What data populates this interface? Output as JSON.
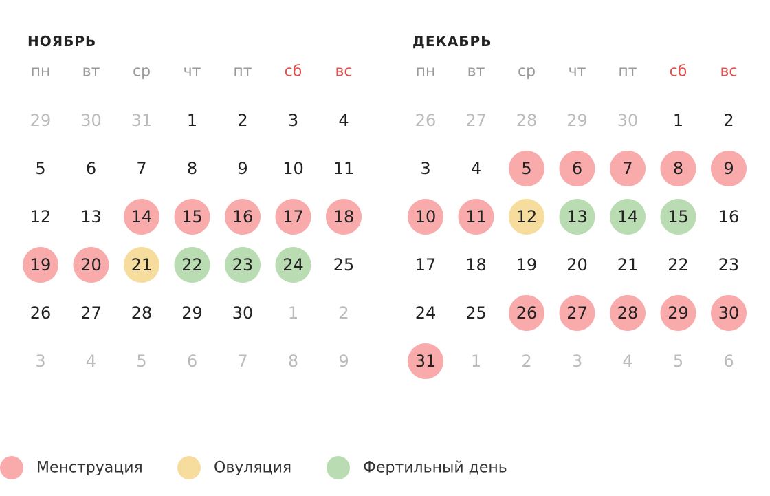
{
  "weekdays": [
    "пн",
    "вт",
    "ср",
    "чт",
    "пт",
    "сб",
    "вс"
  ],
  "weekend_from": 5,
  "colors": {
    "text": "#222222",
    "muted": "#bbbbbb",
    "weekday": "#999999",
    "weekend": "#e0504f"
  },
  "legend": [
    {
      "label": "Менструация",
      "color": "#f9aaab"
    },
    {
      "label": "Овуляция",
      "color": "#f6dd9d"
    },
    {
      "label": "Фертильный день",
      "color": "#badcb2"
    }
  ],
  "months": [
    {
      "title": "НОЯБРЬ",
      "weeks": [
        [
          {
            "day": 29,
            "outside": true
          },
          {
            "day": 30,
            "outside": true
          },
          {
            "day": 31,
            "outside": true
          },
          {
            "day": 1
          },
          {
            "day": 2
          },
          {
            "day": 3
          },
          {
            "day": 4
          }
        ],
        [
          {
            "day": 5
          },
          {
            "day": 6
          },
          {
            "day": 7
          },
          {
            "day": 8
          },
          {
            "day": 9
          },
          {
            "day": 10
          },
          {
            "day": 11
          }
        ],
        [
          {
            "day": 12
          },
          {
            "day": 13
          },
          {
            "day": 14,
            "legend": 0
          },
          {
            "day": 15,
            "legend": 0
          },
          {
            "day": 16,
            "legend": 0
          },
          {
            "day": 17,
            "legend": 0
          },
          {
            "day": 18,
            "legend": 0
          }
        ],
        [
          {
            "day": 19,
            "legend": 0
          },
          {
            "day": 20,
            "legend": 0
          },
          {
            "day": 21,
            "legend": 1
          },
          {
            "day": 22,
            "legend": 2
          },
          {
            "day": 23,
            "legend": 2
          },
          {
            "day": 24,
            "legend": 2
          },
          {
            "day": 25
          }
        ],
        [
          {
            "day": 26
          },
          {
            "day": 27
          },
          {
            "day": 28
          },
          {
            "day": 29
          },
          {
            "day": 30
          },
          {
            "day": 1,
            "outside": true
          },
          {
            "day": 2,
            "outside": true
          }
        ],
        [
          {
            "day": 3,
            "outside": true
          },
          {
            "day": 4,
            "outside": true
          },
          {
            "day": 5,
            "outside": true
          },
          {
            "day": 6,
            "outside": true
          },
          {
            "day": 7,
            "outside": true
          },
          {
            "day": 8,
            "outside": true
          },
          {
            "day": 9,
            "outside": true
          }
        ]
      ]
    },
    {
      "title": "ДЕКАБРЬ",
      "weeks": [
        [
          {
            "day": 26,
            "outside": true
          },
          {
            "day": 27,
            "outside": true
          },
          {
            "day": 28,
            "outside": true
          },
          {
            "day": 29,
            "outside": true
          },
          {
            "day": 30,
            "outside": true
          },
          {
            "day": 1
          },
          {
            "day": 2
          }
        ],
        [
          {
            "day": 3
          },
          {
            "day": 4
          },
          {
            "day": 5,
            "legend": 0
          },
          {
            "day": 6,
            "legend": 0
          },
          {
            "day": 7,
            "legend": 0
          },
          {
            "day": 8,
            "legend": 0
          },
          {
            "day": 9,
            "legend": 0
          }
        ],
        [
          {
            "day": 10,
            "legend": 0
          },
          {
            "day": 11,
            "legend": 0
          },
          {
            "day": 12,
            "legend": 1
          },
          {
            "day": 13,
            "legend": 2
          },
          {
            "day": 14,
            "legend": 2
          },
          {
            "day": 15,
            "legend": 2
          },
          {
            "day": 16
          }
        ],
        [
          {
            "day": 17
          },
          {
            "day": 18
          },
          {
            "day": 19
          },
          {
            "day": 20
          },
          {
            "day": 21
          },
          {
            "day": 22
          },
          {
            "day": 23
          }
        ],
        [
          {
            "day": 24
          },
          {
            "day": 25
          },
          {
            "day": 26,
            "legend": 0
          },
          {
            "day": 27,
            "legend": 0
          },
          {
            "day": 28,
            "legend": 0
          },
          {
            "day": 29,
            "legend": 0
          },
          {
            "day": 30,
            "legend": 0
          }
        ],
        [
          {
            "day": 31,
            "legend": 0
          },
          {
            "day": 1,
            "outside": true
          },
          {
            "day": 2,
            "outside": true
          },
          {
            "day": 3,
            "outside": true
          },
          {
            "day": 4,
            "outside": true
          },
          {
            "day": 5,
            "outside": true
          },
          {
            "day": 6,
            "outside": true
          }
        ]
      ]
    }
  ]
}
